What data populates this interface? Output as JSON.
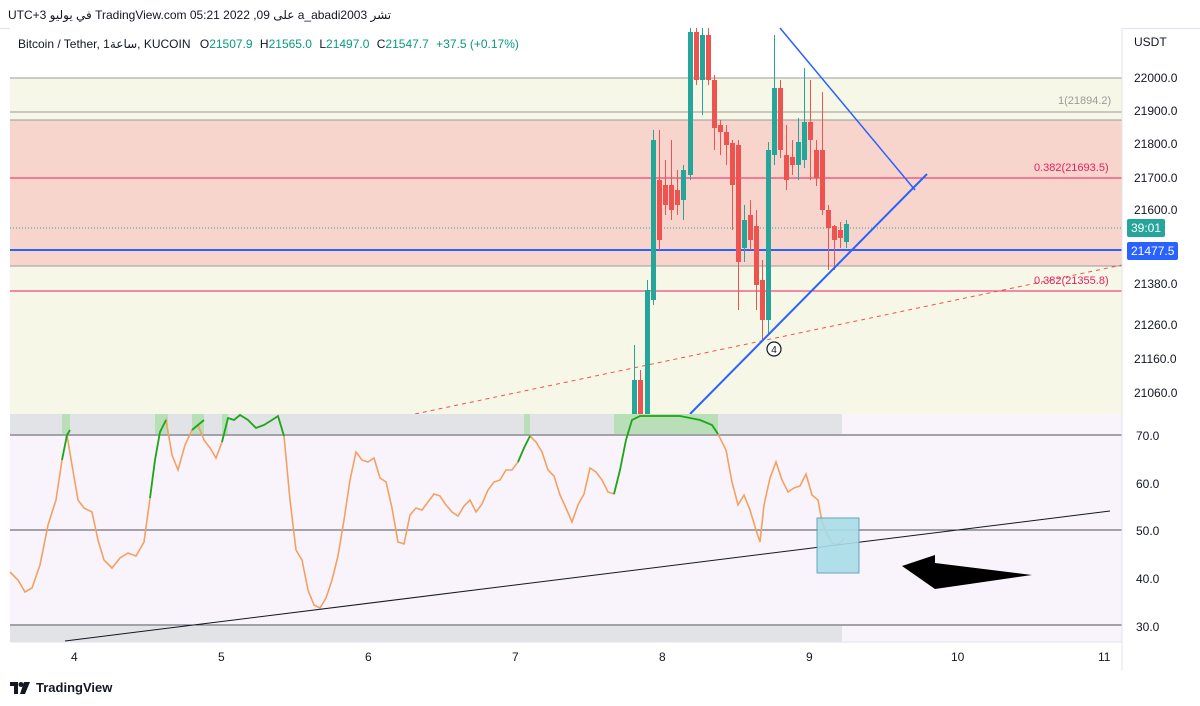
{
  "header": {
    "publish_line": "تشر a_abadi2003 على TradingView.com 05:21 2022 ,09 في يوليو UTC+3"
  },
  "legend": {
    "symbol": "Bitcoin / Tether, 1ساعة, KUCOIN",
    "o_label": "O",
    "o_value": "21507.9",
    "h_label": "H",
    "h_value": "21565.0",
    "l_label": "L",
    "l_value": "21497.0",
    "c_label": "C",
    "c_value": "21547.7",
    "change": "+37.5 (+0.17%)"
  },
  "price_axis": {
    "currency": "USDT",
    "ticks": [
      "22000.0",
      "21900.0",
      "21800.0",
      "21700.0",
      "21600.0",
      "21380.0",
      "21260.0",
      "21160.0",
      "21060.0"
    ],
    "countdown_tag": "39:01",
    "current_price_tag": "21477.5"
  },
  "fib_labels": {
    "level_1": "1(21894.2)",
    "level_0382_upper": "0.382(21693.5)",
    "level_0382_lower": "0.382(21355.8)"
  },
  "indicator_axis": {
    "ticks": [
      "70.0",
      "60.0",
      "50.0",
      "40.0",
      "30.0"
    ]
  },
  "time_axis": {
    "ticks": [
      "4",
      "5",
      "6",
      "7",
      "8",
      "9",
      "10",
      "11"
    ]
  },
  "annotations": {
    "wave_marker": "4"
  },
  "footer": {
    "brand": "TradingView"
  },
  "colors": {
    "bull": "#26a69a",
    "bear": "#ef5350",
    "trendline": "#2962ff",
    "fib_line": "#e91e63",
    "stoch": "#f2a162",
    "stoch_overbought": "#1aa81a",
    "highlight_box": "#a9dce8"
  }
}
